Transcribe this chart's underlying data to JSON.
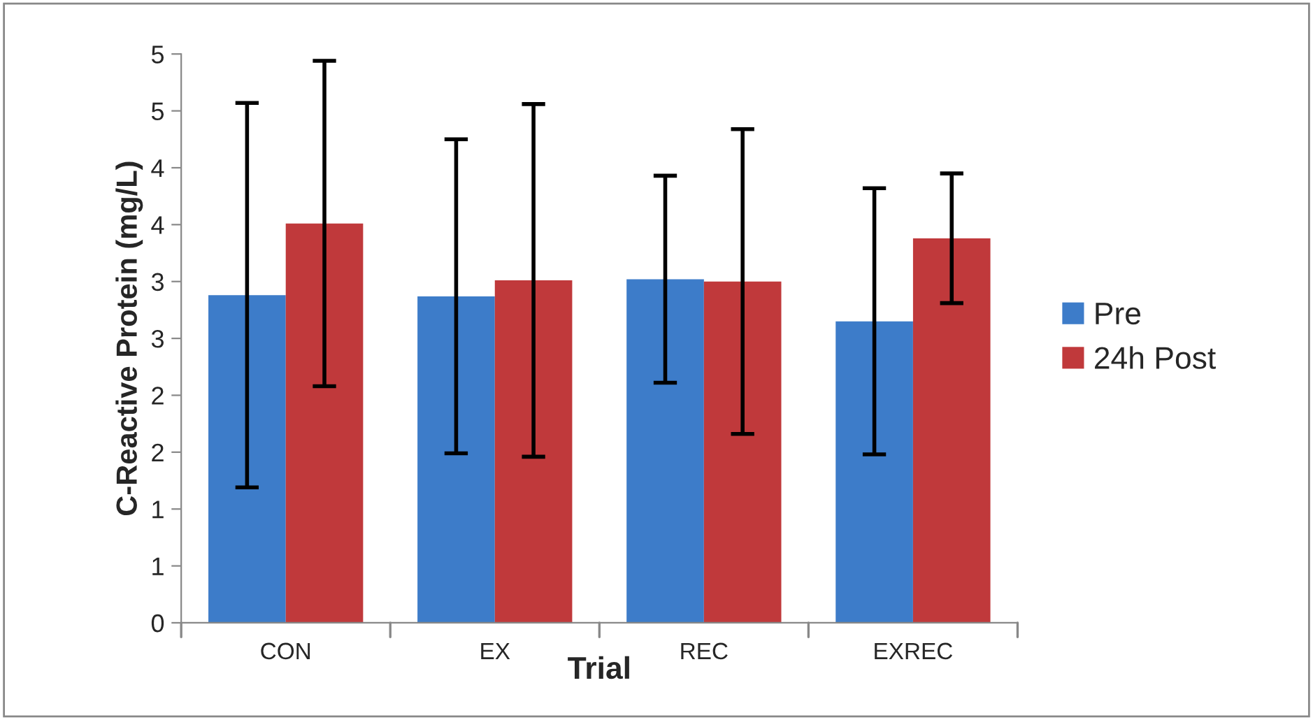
{
  "chart_data": {
    "type": "bar",
    "xlabel": "Trial",
    "ylabel": "C-Reactive Protein (mg/L)",
    "categories": [
      "CON",
      "EX",
      "REC",
      "EXREC"
    ],
    "series": [
      {
        "name": "Pre",
        "color": "#3d7cc9",
        "values": [
          2.88,
          2.87,
          3.02,
          2.65
        ],
        "errors": [
          1.69,
          1.38,
          0.91,
          1.17
        ]
      },
      {
        "name": "24h Post",
        "color": "#c0393b",
        "values": [
          3.51,
          3.01,
          3.0,
          3.38
        ],
        "errors": [
          1.43,
          1.55,
          1.34,
          0.57
        ]
      }
    ],
    "ylim": [
      0,
      5
    ],
    "yticks": [
      0,
      {
        "value": 0.5,
        "label": "1"
      },
      1,
      {
        "value": 1.5,
        "label": "2"
      },
      2,
      {
        "value": 2.5,
        "label": "3"
      },
      3,
      {
        "value": 3.5,
        "label": "4"
      },
      4,
      {
        "value": 4.5,
        "label": "5"
      },
      5
    ],
    "grid": false,
    "legend": "right"
  }
}
